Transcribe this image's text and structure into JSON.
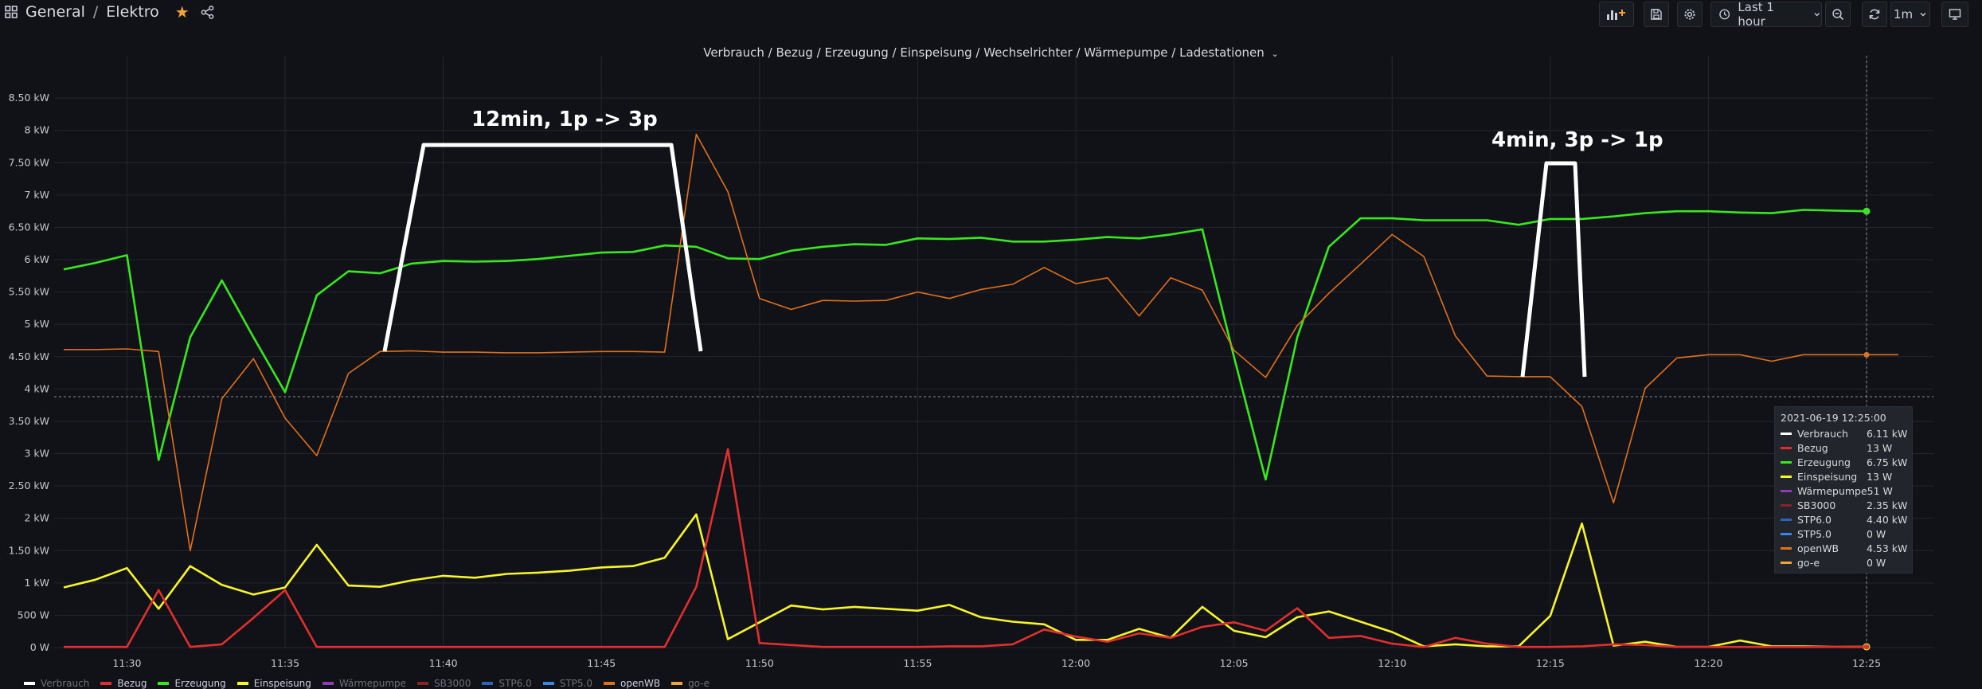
{
  "breadcrumb": {
    "folder": "General",
    "separator": "/",
    "dashboard": "Elektro"
  },
  "toolbar": {
    "time_range_label": "Last 1 hour",
    "refresh_interval_label": "1m"
  },
  "panel": {
    "title": "Verbrauch / Bezug / Erzeugung / Einspeisung / Wechselrichter / Wärmepumpe / Ladestationen"
  },
  "colors": {
    "background": "#111217",
    "Verbrauch": "#ffffff",
    "Bezug": "#e02f2f",
    "Erzeugung": "#37e81e",
    "Einspeisung": "#f5f52a",
    "Wärmepumpe": "#8f3bb8",
    "SB3000": "#8a2323",
    "STP6.0": "#2f65b8",
    "STP5.0": "#3a86e8",
    "openWB": "#e0701c",
    "go-e": "#f2a33a"
  },
  "chart_data": {
    "type": "line",
    "x": [
      "11:28",
      "11:29",
      "11:30",
      "11:31",
      "11:32",
      "11:33",
      "11:34",
      "11:35",
      "11:36",
      "11:37",
      "11:38",
      "11:39",
      "11:40",
      "11:41",
      "11:42",
      "11:43",
      "11:44",
      "11:45",
      "11:46",
      "11:47",
      "11:48",
      "11:49",
      "11:50",
      "11:51",
      "11:52",
      "11:53",
      "11:54",
      "11:55",
      "11:56",
      "11:57",
      "11:58",
      "11:59",
      "12:00",
      "12:01",
      "12:02",
      "12:03",
      "12:04",
      "12:05",
      "12:06",
      "12:07",
      "12:08",
      "12:09",
      "12:10",
      "12:11",
      "12:12",
      "12:13",
      "12:14",
      "12:15",
      "12:16",
      "12:17",
      "12:18",
      "12:19",
      "12:20",
      "12:21",
      "12:22",
      "12:23",
      "12:24",
      "12:25"
    ],
    "x_ticks": [
      "11:30",
      "11:35",
      "11:40",
      "11:45",
      "11:50",
      "11:55",
      "12:00",
      "12:05",
      "12:10",
      "12:15",
      "12:20",
      "12:25"
    ],
    "y_ticks": [
      "0 W",
      "500 W",
      "1 kW",
      "1.50 kW",
      "2 kW",
      "2.50 kW",
      "3 kW",
      "3.50 kW",
      "4 kW",
      "4.50 kW",
      "5 kW",
      "5.50 kW",
      "6 kW",
      "6.50 kW",
      "7 kW",
      "7.50 kW",
      "8 kW",
      "8.50 kW"
    ],
    "ylim": [
      0,
      8700
    ],
    "series": [
      {
        "name": "Erzeugung",
        "color": "#37e81e",
        "values": [
          5850,
          5950,
          6070,
          2900,
          4800,
          5680,
          4800,
          3950,
          5450,
          5820,
          5790,
          5940,
          5980,
          5970,
          5980,
          6010,
          6060,
          6110,
          6120,
          6220,
          6200,
          6020,
          6010,
          6140,
          6200,
          6240,
          6230,
          6330,
          6320,
          6340,
          6280,
          6280,
          6310,
          6350,
          6330,
          6390,
          6470,
          4500,
          2600,
          4800,
          6200,
          6640,
          6640,
          6610,
          6610,
          6610,
          6540,
          6630,
          6630,
          6670,
          6720,
          6750,
          6750,
          6730,
          6720,
          6770,
          6760,
          6750
        ]
      },
      {
        "name": "openWB",
        "color": "#e0701c",
        "values": [
          4610,
          4610,
          4620,
          4580,
          1500,
          3850,
          4470,
          3550,
          2970,
          4240,
          4580,
          4590,
          4570,
          4570,
          4560,
          4560,
          4570,
          4580,
          4580,
          4570,
          7940,
          7050,
          5400,
          5230,
          5370,
          5360,
          5370,
          5500,
          5400,
          5540,
          5620,
          5880,
          5630,
          5720,
          5130,
          5720,
          5530,
          4600,
          4180,
          4980,
          5480,
          5930,
          6390,
          6050,
          4820,
          4200,
          4190,
          4190,
          3730,
          2240,
          4010,
          4480,
          4530,
          4530,
          4430,
          4530,
          4530,
          4530
        ]
      },
      {
        "name": "Einspeisung",
        "color": "#f5f52a",
        "values": [
          930,
          1050,
          1230,
          600,
          1260,
          970,
          820,
          930,
          1590,
          960,
          940,
          1040,
          1110,
          1080,
          1140,
          1160,
          1190,
          1240,
          1260,
          1390,
          2060,
          130,
          390,
          650,
          590,
          630,
          600,
          570,
          660,
          470,
          400,
          360,
          120,
          120,
          290,
          150,
          630,
          260,
          160,
          470,
          560,
          400,
          240,
          20,
          50,
          20,
          20,
          490,
          1920,
          30,
          90,
          10,
          10,
          110,
          20,
          20,
          10,
          13
        ]
      },
      {
        "name": "Bezug",
        "color": "#e02f2f",
        "values": [
          10,
          10,
          10,
          890,
          10,
          50,
          460,
          890,
          10,
          10,
          10,
          10,
          10,
          10,
          10,
          10,
          10,
          10,
          10,
          10,
          940,
          3070,
          70,
          40,
          10,
          10,
          10,
          10,
          20,
          20,
          50,
          280,
          170,
          90,
          220,
          150,
          320,
          390,
          260,
          610,
          150,
          180,
          60,
          10,
          150,
          60,
          10,
          10,
          20,
          50,
          40,
          10,
          10,
          10,
          10,
          10,
          10,
          13
        ]
      }
    ]
  },
  "annotations": [
    {
      "label": "12min, 1p -> 3p"
    },
    {
      "label": "4min, 3p -> 1p"
    }
  ],
  "tooltip": {
    "time": "2021-06-19 12:25:00",
    "rows": [
      {
        "name": "Verbrauch",
        "value": "6.11 kW",
        "color": "#ffffff"
      },
      {
        "name": "Bezug",
        "value": "13 W",
        "color": "#e02f2f"
      },
      {
        "name": "Erzeugung",
        "value": "6.75 kW",
        "color": "#37e81e"
      },
      {
        "name": "Einspeisung",
        "value": "13 W",
        "color": "#f5f52a"
      },
      {
        "name": "Wärmepumpe",
        "value": "51 W",
        "color": "#8f3bb8"
      },
      {
        "name": "SB3000",
        "value": "2.35 kW",
        "color": "#8a2323"
      },
      {
        "name": "STP6.0",
        "value": "4.40 kW",
        "color": "#2f65b8"
      },
      {
        "name": "STP5.0",
        "value": "0 W",
        "color": "#3a86e8"
      },
      {
        "name": "openWB",
        "value": "4.53 kW",
        "color": "#e0701c"
      },
      {
        "name": "go-e",
        "value": "0 W",
        "color": "#f2a33a"
      }
    ]
  },
  "legend": [
    {
      "name": "Verbrauch",
      "color": "#ffffff"
    },
    {
      "name": "Bezug",
      "color": "#e02f2f"
    },
    {
      "name": "Erzeugung",
      "color": "#37e81e"
    },
    {
      "name": "Einspeisung",
      "color": "#f5f52a"
    },
    {
      "name": "Wärmepumpe",
      "color": "#8f3bb8"
    },
    {
      "name": "SB3000",
      "color": "#8a2323"
    },
    {
      "name": "STP6.0",
      "color": "#2f65b8"
    },
    {
      "name": "STP5.0",
      "color": "#3a86e8"
    },
    {
      "name": "openWB",
      "color": "#e0701c"
    },
    {
      "name": "go-e",
      "color": "#f2a33a"
    }
  ]
}
